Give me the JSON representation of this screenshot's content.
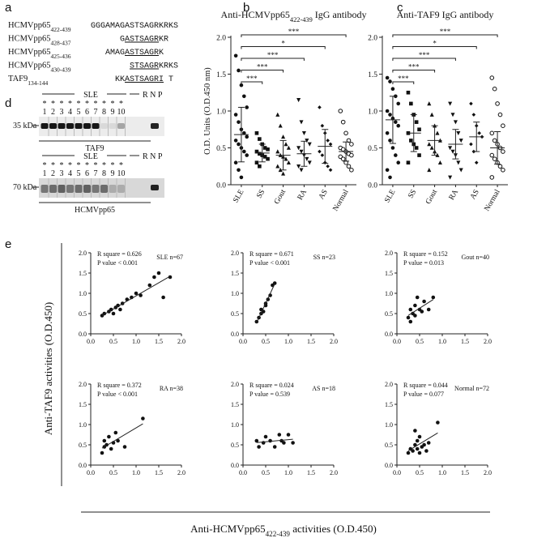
{
  "panel_labels": [
    "a",
    "b",
    "c",
    "d",
    "e"
  ],
  "sequences": [
    {
      "name": "HCMVpp65",
      "range": "422-439",
      "parts": [
        {
          "text": "GGGAMAGASTSAGRKRKS",
          "underline": false
        }
      ]
    },
    {
      "name": "HCMVpp65",
      "range": "428-437",
      "parts": [
        {
          "text": "G",
          "underline": false
        },
        {
          "text": "ASTSAGR",
          "underline": true
        },
        {
          "text": "KR",
          "underline": false
        }
      ]
    },
    {
      "name": "HCMVpp65",
      "range": "425-436",
      "parts": [
        {
          "text": "AMAG",
          "underline": false
        },
        {
          "text": "ASTSAGR",
          "underline": true
        },
        {
          "text": "K",
          "underline": false
        }
      ]
    },
    {
      "name": "HCMVpp65",
      "range": "430-439",
      "parts": [
        {
          "text": "STSAGR",
          "underline": true
        },
        {
          "text": "KRKS",
          "underline": false
        }
      ]
    },
    {
      "name": "TAF9",
      "range": "134-144",
      "parts": [
        {
          "text": "KK",
          "underline": false
        },
        {
          "text": "ASTSAGRI",
          "underline": true
        },
        {
          "text": " T",
          "underline": false
        }
      ]
    }
  ],
  "blots": [
    {
      "group": "SLE",
      "controls": "R N P",
      "stars": [
        "*",
        "*",
        "*",
        "*",
        "*",
        "*",
        "*",
        "*",
        "*",
        "*"
      ],
      "lanes": [
        "1",
        "2",
        "3",
        "4",
        "5",
        "6",
        "7",
        "8",
        "9",
        "10"
      ],
      "size": "35 kDa",
      "protein": "TAF9"
    },
    {
      "group": "SLE",
      "controls": "R N P",
      "stars": [
        "*",
        "*",
        "*",
        "*",
        "*",
        "*",
        "*",
        "*",
        "*",
        "*"
      ],
      "lanes": [
        "1",
        "2",
        "3",
        "4",
        "5",
        "6",
        "7",
        "8",
        "9",
        "10"
      ],
      "size": "70 kDa",
      "protein": "HCMVpp65"
    }
  ],
  "shared_axes": {
    "y": "Anti-TAF9 activities (O.D.450)",
    "x": {
      "text": "Anti-HCMVpp65",
      "sub": "422-439",
      "tail": " activities (O.D.450)"
    }
  },
  "chart_data": [
    {
      "type": "dotplot",
      "title": {
        "text": "Anti-HCMVpp65",
        "sub": "422-439",
        "tail": " IgG antibody"
      },
      "y_label": "O.D. Units (O.D.450 nm)",
      "categories": [
        "SLE",
        "SS",
        "Gout",
        "RA",
        "AS",
        "Normal"
      ],
      "markers": [
        "circle",
        "square",
        "triangle",
        "triangle-down",
        "diamond",
        "open-circle"
      ],
      "values": [
        [
          1.75,
          1.55,
          1.35,
          1.2,
          1.05,
          0.95,
          0.85,
          0.75,
          0.7,
          0.65,
          0.6,
          0.55,
          0.5,
          0.45,
          0.4,
          0.3,
          0.2,
          0.1
        ],
        [
          0.7,
          0.62,
          0.55,
          0.5,
          0.48,
          0.45,
          0.42,
          0.4,
          0.38,
          0.35,
          0.3,
          0.25
        ],
        [
          0.95,
          0.8,
          0.65,
          0.55,
          0.5,
          0.45,
          0.4,
          0.38,
          0.35,
          0.3,
          0.25,
          0.2,
          0.15
        ],
        [
          1.15,
          0.85,
          0.7,
          0.6,
          0.55,
          0.5,
          0.45,
          0.4,
          0.35,
          0.3,
          0.25,
          0.2
        ],
        [
          1.05,
          0.8,
          0.7,
          0.6,
          0.55,
          0.45,
          0.4,
          0.3,
          0.25,
          0.2
        ],
        [
          1.0,
          0.85,
          0.7,
          0.6,
          0.55,
          0.5,
          0.48,
          0.45,
          0.42,
          0.4,
          0.38,
          0.35,
          0.3,
          0.25,
          0.2
        ]
      ],
      "mean": [
        0.68,
        0.43,
        0.4,
        0.42,
        0.52,
        0.45
      ],
      "sd": [
        0.37,
        0.12,
        0.2,
        0.17,
        0.23,
        0.13
      ],
      "comparisons": [
        {
          "to": "Normal",
          "label": "***"
        },
        {
          "to": "AS",
          "label": "*"
        },
        {
          "to": "RA",
          "label": "***"
        },
        {
          "to": "Gout",
          "label": "***"
        },
        {
          "to": "SS",
          "label": "***"
        }
      ],
      "ylim": [
        0,
        2
      ],
      "yticks": [
        {
          "value": 0,
          "label": "0.0"
        },
        0.5,
        {
          "value": 1,
          "label": "1.0"
        },
        1.5,
        {
          "value": 2,
          "label": "2.0"
        }
      ]
    },
    {
      "type": "dotplot",
      "title": {
        "text": "Anti-TAF9 IgG antibody"
      },
      "categories": [
        "SLE",
        "SS",
        "Gout",
        "RA",
        "AS",
        "Normal"
      ],
      "markers": [
        "circle",
        "square",
        "triangle",
        "triangle-down",
        "diamond",
        "open-circle"
      ],
      "values": [
        [
          1.45,
          1.4,
          1.3,
          1.2,
          1.1,
          1.0,
          0.95,
          0.9,
          0.85,
          0.8,
          0.7,
          0.6,
          0.5,
          0.4,
          0.3,
          0.2,
          0.1
        ],
        [
          1.25,
          1.1,
          0.95,
          0.85,
          0.75,
          0.7,
          0.6,
          0.55,
          0.5,
          0.4,
          0.3
        ],
        [
          1.1,
          0.95,
          0.8,
          0.7,
          0.6,
          0.55,
          0.5,
          0.45,
          0.4,
          0.3,
          0.2
        ],
        [
          1.1,
          0.95,
          0.85,
          0.7,
          0.6,
          0.5,
          0.45,
          0.4,
          0.3,
          0.2,
          0.1
        ],
        [
          1.1,
          0.95,
          0.8,
          0.7,
          0.65,
          0.55,
          0.45,
          0.3
        ],
        [
          1.45,
          1.3,
          1.1,
          0.95,
          0.8,
          0.7,
          0.6,
          0.55,
          0.5,
          0.45,
          0.4,
          0.35,
          0.3,
          0.25,
          0.2,
          0.1
        ]
      ],
      "mean": [
        0.88,
        0.7,
        0.6,
        0.55,
        0.65,
        0.5
      ],
      "sd": [
        0.32,
        0.25,
        0.2,
        0.2,
        0.2,
        0.22
      ],
      "comparisons": [
        {
          "to": "Normal",
          "label": "***"
        },
        {
          "to": "AS",
          "label": "*"
        },
        {
          "to": "RA",
          "label": "***"
        },
        {
          "to": "Gout",
          "label": "***"
        },
        {
          "to": "SS",
          "label": "***"
        }
      ],
      "ylim": [
        0,
        2
      ],
      "yticks": [
        {
          "value": 0,
          "label": "0.0"
        },
        0.5,
        {
          "value": 1,
          "label": "1.0"
        },
        1.5,
        {
          "value": 2,
          "label": "2.0"
        }
      ]
    },
    {
      "type": "scatter",
      "title": "SLE n=67",
      "annotations": [
        "R square = 0.626",
        "P value < 0.001"
      ],
      "fit_line": true,
      "x": [
        0.25,
        0.3,
        0.4,
        0.45,
        0.5,
        0.55,
        0.6,
        0.65,
        0.7,
        0.8,
        0.9,
        1.0,
        1.1,
        1.3,
        1.4,
        1.5,
        1.6,
        1.75
      ],
      "y": [
        0.45,
        0.5,
        0.55,
        0.6,
        0.5,
        0.65,
        0.7,
        0.6,
        0.75,
        0.85,
        0.9,
        1.0,
        0.95,
        1.2,
        1.4,
        1.5,
        0.9,
        1.4
      ],
      "xlim": [
        0,
        2
      ],
      "ylim": [
        0,
        2
      ],
      "xticks": [
        {
          "value": 0,
          "label": "0.0"
        },
        0.5,
        {
          "value": 1,
          "label": "1.0"
        },
        1.5,
        {
          "value": 2,
          "label": "2.0"
        }
      ],
      "yticks": [
        {
          "value": 0,
          "label": "0.0"
        },
        0.5,
        {
          "value": 1,
          "label": "1.0"
        },
        1.5,
        {
          "value": 2,
          "label": "2.0"
        }
      ]
    },
    {
      "type": "scatter",
      "title": "SS n=23",
      "annotations": [
        "R square = 0.671",
        "P value < 0.001"
      ],
      "fit_line": true,
      "x": [
        0.3,
        0.35,
        0.4,
        0.4,
        0.45,
        0.5,
        0.5,
        0.55,
        0.6,
        0.65,
        0.7
      ],
      "y": [
        0.3,
        0.4,
        0.5,
        0.6,
        0.55,
        0.7,
        0.75,
        0.85,
        0.95,
        1.2,
        1.25
      ],
      "xlim": [
        0,
        2
      ],
      "ylim": [
        0,
        2
      ],
      "xticks": [
        {
          "value": 0,
          "label": "0.0"
        },
        0.5,
        {
          "value": 1,
          "label": "1.0"
        },
        1.5,
        {
          "value": 2,
          "label": "2.0"
        }
      ],
      "yticks": [
        {
          "value": 0,
          "label": "0.0"
        },
        0.5,
        {
          "value": 1,
          "label": "1.0"
        },
        1.5,
        {
          "value": 2,
          "label": "2.0"
        }
      ]
    },
    {
      "type": "scatter",
      "title": "Gout n=40",
      "annotations": [
        "R square = 0.152",
        "P value = 0.013"
      ],
      "fit_line": true,
      "x": [
        0.25,
        0.3,
        0.3,
        0.35,
        0.4,
        0.4,
        0.45,
        0.5,
        0.55,
        0.6,
        0.7,
        0.8
      ],
      "y": [
        0.4,
        0.6,
        0.3,
        0.5,
        0.7,
        0.45,
        0.9,
        0.6,
        0.55,
        0.8,
        0.6,
        0.9
      ],
      "xlim": [
        0,
        2
      ],
      "ylim": [
        0,
        2
      ],
      "xticks": [
        {
          "value": 0,
          "label": "0.0"
        },
        0.5,
        {
          "value": 1,
          "label": "1.0"
        },
        1.5,
        {
          "value": 2,
          "label": "2.0"
        }
      ],
      "yticks": [
        {
          "value": 0,
          "label": "0.0"
        },
        0.5,
        {
          "value": 1,
          "label": "1.0"
        },
        1.5,
        {
          "value": 2,
          "label": "2.0"
        }
      ]
    },
    {
      "type": "scatter",
      "title": "RA n=38",
      "annotations": [
        "R square = 0.372",
        "P value < 0.001"
      ],
      "fit_line": true,
      "x": [
        0.25,
        0.3,
        0.3,
        0.35,
        0.4,
        0.45,
        0.5,
        0.55,
        0.6,
        0.75,
        1.15
      ],
      "y": [
        0.3,
        0.45,
        0.6,
        0.5,
        0.7,
        0.4,
        0.55,
        0.8,
        0.6,
        0.45,
        1.15
      ],
      "xlim": [
        0,
        2
      ],
      "ylim": [
        0,
        2
      ],
      "xticks": [
        {
          "value": 0,
          "label": "0.0"
        },
        0.5,
        {
          "value": 1,
          "label": "1.0"
        },
        1.5,
        {
          "value": 2,
          "label": "2.0"
        }
      ],
      "yticks": [
        {
          "value": 0,
          "label": "0.0"
        },
        0.5,
        {
          "value": 1,
          "label": "1.0"
        },
        1.5,
        {
          "value": 2,
          "label": "2.0"
        }
      ]
    },
    {
      "type": "scatter",
      "title": "AS n=18",
      "annotations": [
        "R square = 0.024",
        "P value = 0.539"
      ],
      "fit_line": true,
      "x": [
        0.3,
        0.35,
        0.45,
        0.5,
        0.6,
        0.7,
        0.8,
        0.85,
        0.9,
        1.0,
        1.1
      ],
      "y": [
        0.6,
        0.45,
        0.55,
        0.7,
        0.6,
        0.45,
        0.75,
        0.6,
        0.55,
        0.75,
        0.55
      ],
      "xlim": [
        0,
        2
      ],
      "ylim": [
        0,
        2
      ],
      "xticks": [
        {
          "value": 0,
          "label": "0.0"
        },
        0.5,
        {
          "value": 1,
          "label": "1.0"
        },
        1.5,
        {
          "value": 2,
          "label": "2.0"
        }
      ],
      "yticks": [
        {
          "value": 0,
          "label": "0.0"
        },
        0.5,
        {
          "value": 1,
          "label": "1.0"
        },
        1.5,
        {
          "value": 2,
          "label": "2.0"
        }
      ]
    },
    {
      "type": "scatter",
      "title": "Normal n=72",
      "annotations": [
        "R square = 0.044",
        "P value = 0.077"
      ],
      "fit_line": true,
      "x": [
        0.25,
        0.3,
        0.35,
        0.4,
        0.4,
        0.45,
        0.45,
        0.5,
        0.5,
        0.55,
        0.6,
        0.65,
        0.7,
        0.9
      ],
      "y": [
        0.3,
        0.4,
        0.35,
        0.5,
        0.85,
        0.4,
        0.6,
        0.3,
        0.7,
        0.45,
        0.5,
        0.35,
        0.55,
        1.05
      ],
      "xlim": [
        0,
        2
      ],
      "ylim": [
        0,
        2
      ],
      "xticks": [
        {
          "value": 0,
          "label": "0.0"
        },
        0.5,
        {
          "value": 1,
          "label": "1.0"
        },
        1.5,
        {
          "value": 2,
          "label": "2.0"
        }
      ],
      "yticks": [
        {
          "value": 0,
          "label": "0.0"
        },
        0.5,
        {
          "value": 1,
          "label": "1.0"
        },
        1.5,
        {
          "value": 2,
          "label": "2.0"
        }
      ]
    }
  ]
}
